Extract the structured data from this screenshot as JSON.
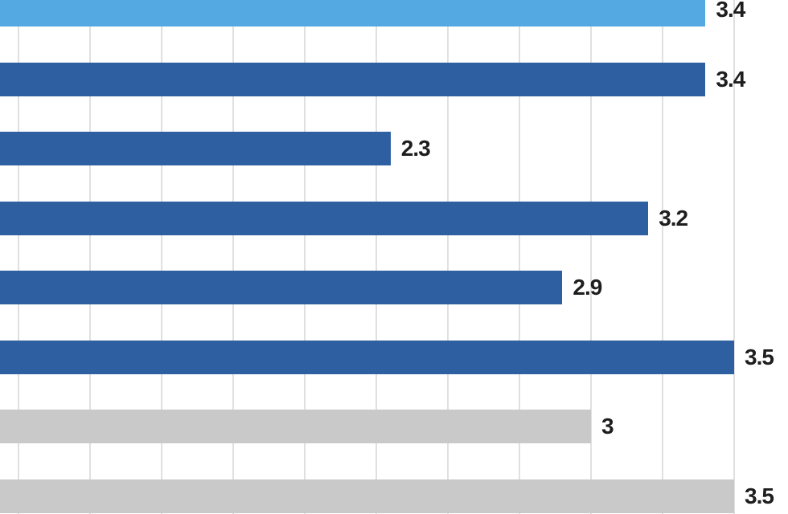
{
  "chart_data": {
    "type": "bar",
    "orientation": "horizontal",
    "cropped": true,
    "bars": [
      {
        "value": 3.4,
        "label": "3.4",
        "color_key": "light_blue"
      },
      {
        "value": 3.4,
        "label": "3.4",
        "color_key": "dark_blue"
      },
      {
        "value": 2.3,
        "label": "2.3",
        "color_key": "dark_blue"
      },
      {
        "value": 3.2,
        "label": "3.2",
        "color_key": "dark_blue"
      },
      {
        "value": 2.9,
        "label": "2.9",
        "color_key": "dark_blue"
      },
      {
        "value": 3.5,
        "label": "3.5",
        "color_key": "dark_blue"
      },
      {
        "value": 3,
        "label": "3",
        "color_key": "gray"
      },
      {
        "value": 3.5,
        "label": "3.5",
        "color_key": "gray"
      }
    ],
    "colors": {
      "light_blue": "#55a9e2",
      "dark_blue": "#2d5fa1",
      "gray": "#c9c9c9"
    },
    "value_label_color": "#1e1e1e",
    "gridlines": {
      "min": 1.0,
      "max": 3.5,
      "step": 0.25,
      "color": "#e0e0e0"
    },
    "background": "#ffffff",
    "legend": "none",
    "axis_tick_labels_visible": false,
    "category_labels_visible": false
  }
}
